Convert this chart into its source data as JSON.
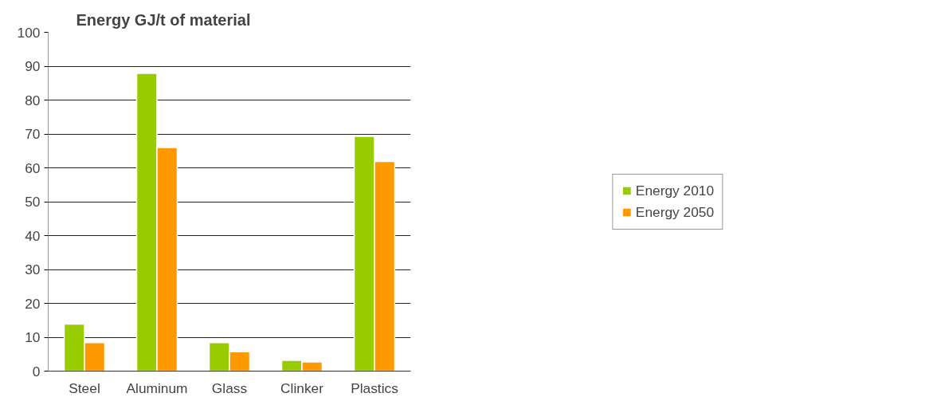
{
  "chart_data": {
    "type": "bar",
    "title": "Energy GJ/t of material",
    "categories": [
      "Steel",
      "Aluminum",
      "Glass",
      "Clinker",
      "Plastics"
    ],
    "series": [
      {
        "name": "Energy 2010",
        "color": "#99cc00",
        "values": [
          13.9,
          87.9,
          8.4,
          3.2,
          69.3
        ]
      },
      {
        "name": "Energy 2050",
        "color": "#ff9900",
        "values": [
          8.4,
          66.0,
          5.7,
          2.7,
          61.9
        ]
      }
    ],
    "ylim": [
      0,
      100
    ],
    "yticks": [
      0,
      10,
      20,
      30,
      40,
      50,
      60,
      70,
      80,
      90,
      100
    ],
    "grid": "y",
    "legend": "right"
  }
}
